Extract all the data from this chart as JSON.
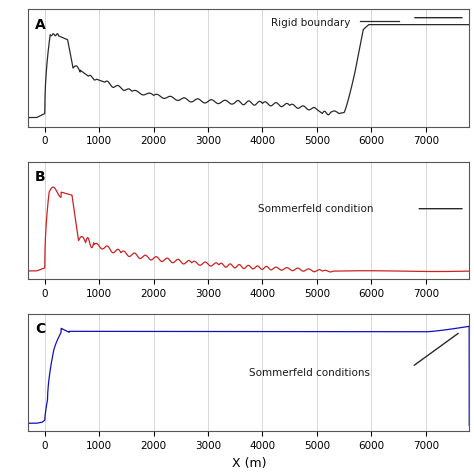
{
  "xlabel": "X (m)",
  "xlim": [
    -300,
    7800
  ],
  "xticks": [
    0,
    1000,
    2000,
    3000,
    4000,
    5000,
    6000,
    7000
  ],
  "panels": [
    {
      "label": "A",
      "annotation": "Rigid boundary",
      "line_color": "#2a2a2a",
      "legend_line": true
    },
    {
      "label": "B",
      "annotation": "Sommerfeld condition",
      "line_color": "#cc2222",
      "legend_line": true
    },
    {
      "label": "C",
      "annotation": "Sommerfeld conditions",
      "line_color": "#1111bb",
      "legend_line": false
    }
  ],
  "background_color": "#ffffff",
  "grid_color": "#c8c8c8"
}
